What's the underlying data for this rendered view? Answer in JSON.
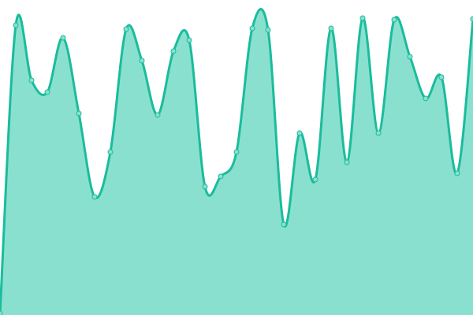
{
  "chart_data": {
    "type": "area",
    "title": "",
    "xlabel": "",
    "ylabel": "",
    "x": [
      0,
      1,
      2,
      3,
      4,
      5,
      6,
      7,
      8,
      9,
      10,
      11,
      12,
      13,
      14,
      15,
      16,
      17,
      18,
      19,
      20,
      21,
      22,
      23,
      24,
      25,
      26,
      27,
      28,
      29,
      30
    ],
    "values": [
      2,
      368,
      298,
      283,
      352,
      256,
      150,
      207,
      363,
      323,
      254,
      335,
      349,
      163,
      176,
      207,
      364,
      362,
      115,
      231,
      172,
      364,
      194,
      377,
      231,
      375,
      328,
      275,
      302,
      180,
      376
    ],
    "ylim": [
      0,
      400
    ],
    "xlim": [
      0,
      30
    ],
    "grid": false,
    "axes_visible": false,
    "smooth": true,
    "markers": true,
    "colors": {
      "line": "#1abc9c",
      "fill": "#8ae0cf",
      "marker_fill": "#8ae0cf"
    }
  }
}
